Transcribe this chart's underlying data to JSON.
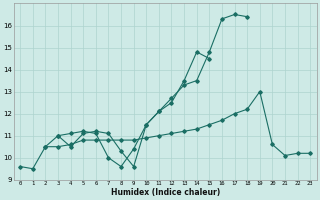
{
  "xlabel": "Humidex (Indice chaleur)",
  "xlim": [
    -0.5,
    23.5
  ],
  "ylim": [
    9,
    17
  ],
  "yticks": [
    9,
    10,
    11,
    12,
    13,
    14,
    15,
    16
  ],
  "xticks": [
    0,
    1,
    2,
    3,
    4,
    5,
    6,
    7,
    8,
    9,
    10,
    11,
    12,
    13,
    14,
    15,
    16,
    17,
    18,
    19,
    20,
    21,
    22,
    23
  ],
  "bg_color": "#ceeae6",
  "grid_color": "#aed4cf",
  "line_color": "#1a6e64",
  "line1": {
    "x": [
      0,
      1,
      2,
      3,
      4,
      5,
      6,
      7,
      8,
      9,
      10,
      11,
      12,
      13,
      14,
      15,
      16,
      17,
      18
    ],
    "y": [
      9.6,
      9.5,
      10.5,
      11.0,
      11.1,
      11.2,
      11.1,
      10.0,
      9.6,
      10.4,
      11.5,
      12.1,
      12.7,
      13.3,
      13.5,
      14.8,
      16.3,
      16.5,
      16.4
    ]
  },
  "line2": {
    "x": [
      3,
      4,
      5,
      6,
      7,
      8,
      9,
      10,
      11,
      12,
      13,
      14,
      15
    ],
    "y": [
      11.0,
      10.5,
      11.1,
      11.2,
      11.1,
      10.3,
      9.6,
      11.5,
      12.1,
      12.5,
      13.5,
      14.8,
      14.5
    ]
  },
  "line3": {
    "x": [
      2,
      3,
      4,
      5,
      6,
      7,
      8,
      9,
      10,
      11,
      12,
      13,
      14,
      15,
      16,
      17,
      18,
      19,
      20,
      21,
      22,
      23
    ],
    "y": [
      10.5,
      10.5,
      10.6,
      10.8,
      10.8,
      10.8,
      10.8,
      10.8,
      10.9,
      11.0,
      11.1,
      11.2,
      11.3,
      11.5,
      11.7,
      12.0,
      12.2,
      13.0,
      10.6,
      10.1,
      10.2,
      10.2
    ]
  }
}
